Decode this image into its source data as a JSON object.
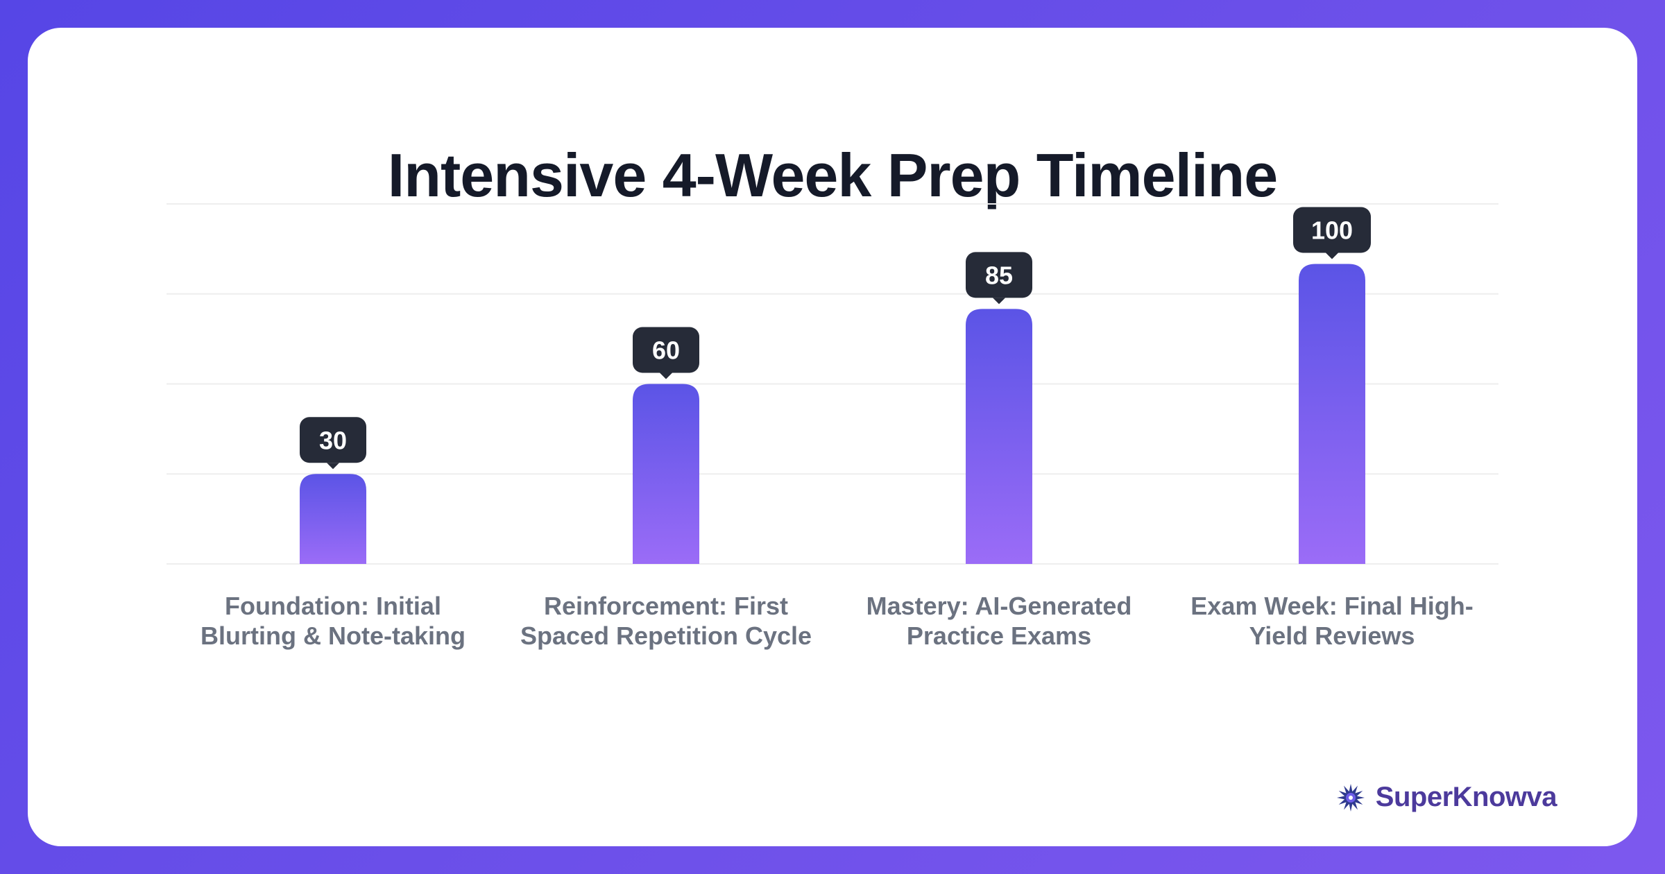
{
  "brand": {
    "name": "SuperKnowva",
    "logo_icon": "starburst-logo-icon"
  },
  "colors": {
    "background_gradient": [
      "#5646e6",
      "#7d58ee"
    ],
    "bar_top": "#5b54e6",
    "bar_bottom": "#9b6cf7",
    "tooltip": "#262b38",
    "gridline": "#eeeeee"
  },
  "chart_data": {
    "type": "bar",
    "title": "Intensive 4-Week Prep Timeline",
    "xlabel": "",
    "ylabel": "",
    "ylim": [
      0,
      120
    ],
    "grid": true,
    "categories": [
      "Foundation: Initial Blurting & Note-taking",
      "Reinforcement: First Spaced Repetition Cycle",
      "Mastery: AI-Generated Practice Exams",
      "Exam Week: Final High-Yield Reviews"
    ],
    "values": [
      30,
      60,
      85,
      100
    ],
    "data_labels": [
      "30",
      "60",
      "85",
      "100"
    ]
  }
}
